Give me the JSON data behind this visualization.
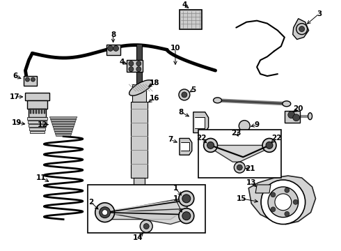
{
  "bg_color": "#ffffff",
  "line_color": "#000000",
  "figsize": [
    4.9,
    3.6
  ],
  "dpi": 100,
  "gray1": "#cccccc",
  "gray2": "#888888",
  "gray3": "#444444",
  "gray4": "#aaaaaa"
}
